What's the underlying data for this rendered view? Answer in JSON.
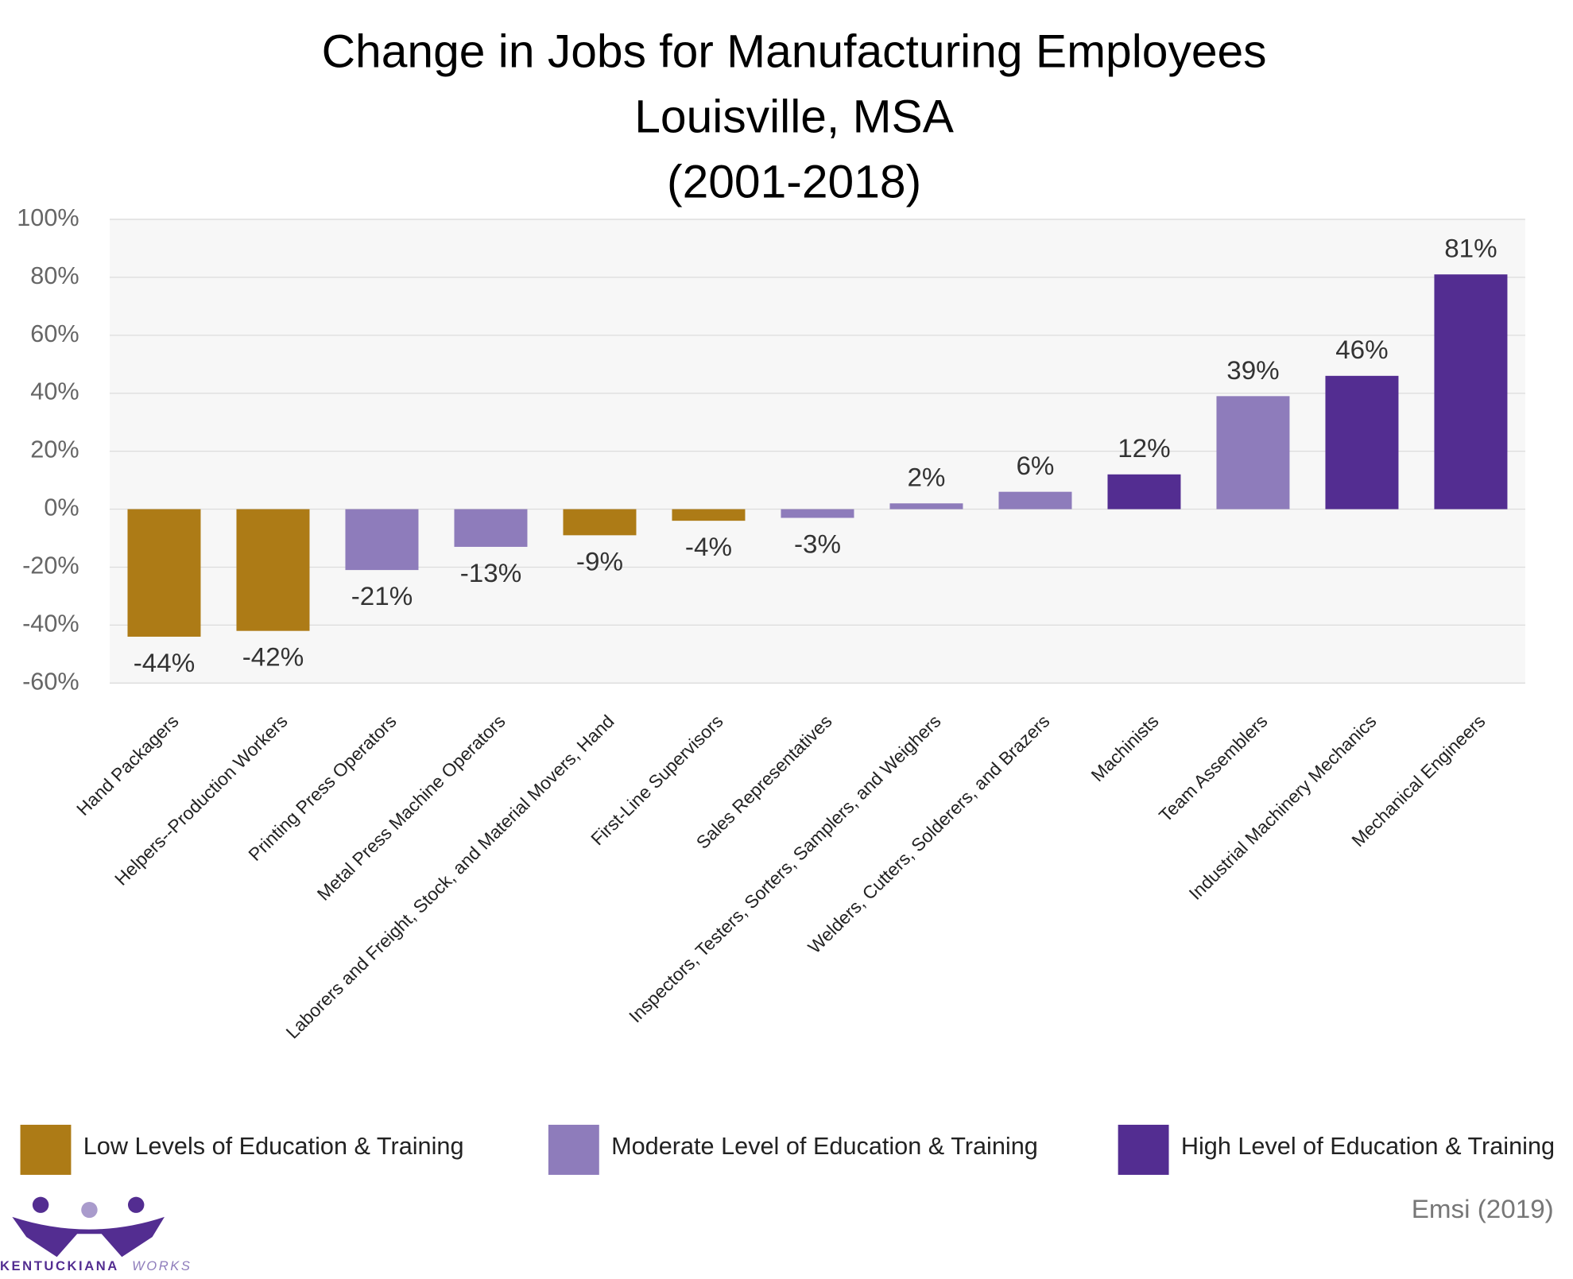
{
  "chart_data": {
    "type": "bar",
    "title": [
      "Change in Jobs for Manufacturing Employees",
      "Louisville, MSA",
      "(2001-2018)"
    ],
    "categories": [
      "Hand Packagers",
      "Helpers--Production Workers",
      "Printing Press Operators",
      "Metal Press Machine Operators",
      "Laborers and Freight, Stock, and Material Movers, Hand",
      "First-Line Supervisors",
      "Sales Representatives",
      "Inspectors, Testers, Sorters, Samplers, and Weighers",
      "Welders, Cutters, Solderers, and Brazers",
      "Machinists",
      "Team Assemblers",
      "Industrial Machinery Mechanics",
      "Mechanical Engineers"
    ],
    "series": [
      {
        "name": "Low Levels of Education & Training",
        "color": "#ad7b16",
        "values": [
          -44,
          -42,
          null,
          null,
          -9,
          -4,
          null,
          null,
          null,
          null,
          null,
          null,
          null
        ],
        "value_labels": [
          "-44%",
          "-42%",
          null,
          null,
          "-9%",
          "-4%",
          null,
          null,
          null,
          null,
          null,
          null,
          null
        ]
      },
      {
        "name": "Moderate Level of Education & Training",
        "color": "#8e7cbb",
        "values": [
          null,
          null,
          -21,
          -13,
          null,
          null,
          -3,
          2,
          6,
          null,
          39,
          null,
          null
        ],
        "value_labels": [
          null,
          null,
          "-21%",
          "-13%",
          null,
          null,
          "-3%",
          "2%",
          "6%",
          null,
          "39%",
          null,
          null
        ]
      },
      {
        "name": "High Level of Education & Training",
        "color": "#532d91",
        "values": [
          null,
          null,
          null,
          null,
          null,
          null,
          null,
          null,
          null,
          12,
          null,
          46,
          81
        ],
        "value_labels": [
          null,
          null,
          null,
          null,
          null,
          null,
          null,
          null,
          null,
          "12%",
          null,
          "46%",
          "81%"
        ]
      }
    ],
    "ylim": [
      -60,
      100
    ],
    "yticks": [
      {
        "value": -60,
        "label": "-60%"
      },
      {
        "value": -40,
        "label": "-40%"
      },
      {
        "value": -20,
        "label": "-20%"
      },
      {
        "value": 0,
        "label": "0%"
      },
      {
        "value": 20,
        "label": "20%"
      },
      {
        "value": 40,
        "label": "40%"
      },
      {
        "value": 60,
        "label": "60%"
      },
      {
        "value": 80,
        "label": "80%"
      },
      {
        "value": 100,
        "label": "100%"
      }
    ],
    "grid": true,
    "source": "Emsi (2019)",
    "logo": [
      "KENTUCKIANA",
      "WORKS"
    ]
  }
}
